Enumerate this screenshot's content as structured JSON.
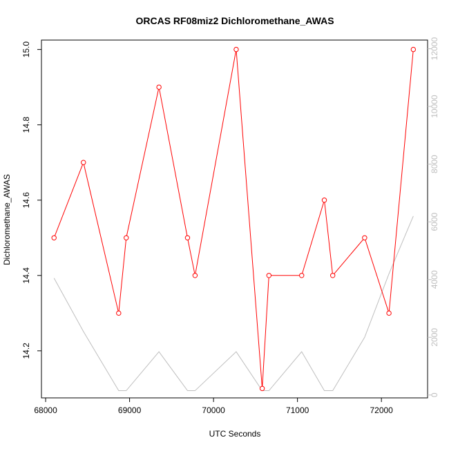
{
  "chart_data": {
    "type": "line",
    "title": "ORCAS RF08miz2 Dichloromethane_AWAS",
    "xlabel": "UTC Seconds",
    "ylabel": "Dichloromethane_AWAS",
    "xlim": [
      67950,
      72550
    ],
    "ylim": [
      14.075,
      15.025
    ],
    "y2lim": [
      -100,
      12300
    ],
    "x_ticks": [
      68000,
      69000,
      70000,
      71000,
      72000
    ],
    "y_ticks": [
      14.2,
      14.4,
      14.6,
      14.8,
      15.0
    ],
    "y_tick_labels": [
      "14.2",
      "14.4",
      "14.6",
      "14.8",
      "15.0"
    ],
    "y2_ticks": [
      0,
      2000,
      4000,
      6000,
      8000,
      10000,
      12000
    ],
    "colors": {
      "primary": "#ff0000",
      "secondary": "#bebebe",
      "axis": "#000000"
    },
    "series": [
      {
        "axis": "left",
        "style": "line-points",
        "color": "#ff0000",
        "x": [
          68100,
          68450,
          68870,
          68960,
          69350,
          69690,
          69780,
          70270,
          70580,
          70660,
          71050,
          71320,
          71420,
          71800,
          72090,
          72380
        ],
        "values": [
          14.5,
          14.7,
          14.3,
          14.5,
          14.9,
          14.5,
          14.4,
          15.0,
          14.1,
          14.4,
          14.4,
          14.6,
          14.4,
          14.5,
          14.3,
          15.0
        ]
      },
      {
        "axis": "right",
        "style": "line",
        "color": "#bebebe",
        "x": [
          68100,
          68450,
          68870,
          68960,
          69350,
          69690,
          69780,
          70270,
          70580,
          70660,
          71050,
          71320,
          71420,
          71800,
          72090,
          72380
        ],
        "values": [
          4050,
          2200,
          150,
          150,
          1500,
          150,
          150,
          1500,
          150,
          150,
          1500,
          150,
          150,
          2000,
          4200,
          6200
        ]
      }
    ]
  }
}
